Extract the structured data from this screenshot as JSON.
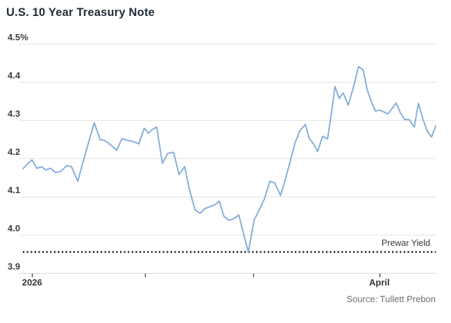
{
  "title": "U.S. 10 Year Treasury Note",
  "source": "Source: Tullett Prebon",
  "colors": {
    "line": "#87aedb",
    "grid": "#e3e3e3",
    "axis": "#d9d9d9",
    "tick_mark": "#3f3f3f",
    "reference_line": "#1c1c1c",
    "title_text": "#1f2b38",
    "tick_text": "#3e3e44",
    "source_text": "#6e6e6e"
  },
  "chart_data": {
    "type": "line",
    "title": "U.S. 10 Year Treasury Note",
    "unit": "percent yield",
    "ylim": [
      3.9,
      4.5
    ],
    "grid": true,
    "y_ticks": [
      {
        "label": "4.5%",
        "value": 4.5
      },
      {
        "label": "4.4",
        "value": 4.4
      },
      {
        "label": "4.3",
        "value": 4.3
      },
      {
        "label": "4.2",
        "value": 4.2
      },
      {
        "label": "4.1",
        "value": 4.1
      },
      {
        "label": "4.0",
        "value": 4.0
      },
      {
        "label": "3.9",
        "value": 3.9
      }
    ],
    "x_ticks": [
      {
        "label": "2026",
        "pos_pct": 3.2
      },
      {
        "label": "",
        "pos_pct": 30.3
      },
      {
        "label": "",
        "pos_pct": 56.2
      },
      {
        "label": "April",
        "pos_pct": 86.5
      }
    ],
    "reference_line": {
      "label": "Prewar Yield",
      "value": 3.955,
      "style": "dotted"
    },
    "series": [
      {
        "name": "U.S. 10 Year Treasury Note yield",
        "points": [
          [
            0,
            4.173
          ],
          [
            1.2,
            4.186
          ],
          [
            2.2,
            4.196
          ],
          [
            3.4,
            4.174
          ],
          [
            4.5,
            4.178
          ],
          [
            5.5,
            4.17
          ],
          [
            6.7,
            4.174
          ],
          [
            7.9,
            4.163
          ],
          [
            9.2,
            4.166
          ],
          [
            10.6,
            4.181
          ],
          [
            11.8,
            4.178
          ],
          [
            13.3,
            4.14
          ],
          [
            14.6,
            4.192
          ],
          [
            16,
            4.245
          ],
          [
            17.3,
            4.293
          ],
          [
            18.7,
            4.249
          ],
          [
            19.8,
            4.247
          ],
          [
            21.2,
            4.236
          ],
          [
            22.7,
            4.221
          ],
          [
            24,
            4.252
          ],
          [
            25.4,
            4.247
          ],
          [
            26.7,
            4.244
          ],
          [
            28.1,
            4.238
          ],
          [
            29.4,
            4.279
          ],
          [
            30.4,
            4.266
          ],
          [
            31.4,
            4.276
          ],
          [
            32.4,
            4.282
          ],
          [
            33.8,
            4.187
          ],
          [
            35.1,
            4.213
          ],
          [
            36.5,
            4.216
          ],
          [
            37.8,
            4.158
          ],
          [
            39.2,
            4.178
          ],
          [
            40.3,
            4.12
          ],
          [
            41.7,
            4.065
          ],
          [
            42.9,
            4.056
          ],
          [
            44,
            4.068
          ],
          [
            45.2,
            4.073
          ],
          [
            46.4,
            4.078
          ],
          [
            47.6,
            4.088
          ],
          [
            48.7,
            4.048
          ],
          [
            49.9,
            4.038
          ],
          [
            51.1,
            4.042
          ],
          [
            52.3,
            4.052
          ],
          [
            53.4,
            4.005
          ],
          [
            54.6,
            3.954
          ],
          [
            56,
            4.038
          ],
          [
            57.1,
            4.062
          ],
          [
            58.5,
            4.094
          ],
          [
            59.8,
            4.14
          ],
          [
            61,
            4.136
          ],
          [
            62.4,
            4.103
          ],
          [
            63.5,
            4.142
          ],
          [
            64.7,
            4.19
          ],
          [
            65.9,
            4.24
          ],
          [
            67.1,
            4.272
          ],
          [
            68.4,
            4.289
          ],
          [
            69.4,
            4.251
          ],
          [
            70.4,
            4.238
          ],
          [
            71.4,
            4.218
          ],
          [
            72.6,
            4.258
          ],
          [
            73.8,
            4.251
          ],
          [
            74.8,
            4.324
          ],
          [
            75.6,
            4.388
          ],
          [
            76.6,
            4.357
          ],
          [
            77.6,
            4.371
          ],
          [
            78.8,
            4.339
          ],
          [
            80.2,
            4.392
          ],
          [
            81.3,
            4.44
          ],
          [
            82.4,
            4.432
          ],
          [
            83.4,
            4.38
          ],
          [
            84.4,
            4.348
          ],
          [
            85.4,
            4.324
          ],
          [
            86.4,
            4.326
          ],
          [
            87.4,
            4.322
          ],
          [
            88.4,
            4.316
          ],
          [
            89.4,
            4.33
          ],
          [
            90.4,
            4.345
          ],
          [
            91.4,
            4.32
          ],
          [
            92.4,
            4.302
          ],
          [
            93.6,
            4.301
          ],
          [
            94.8,
            4.282
          ],
          [
            95.8,
            4.344
          ],
          [
            97,
            4.3
          ],
          [
            98,
            4.27
          ],
          [
            99,
            4.256
          ],
          [
            100,
            4.285
          ]
        ]
      }
    ]
  }
}
